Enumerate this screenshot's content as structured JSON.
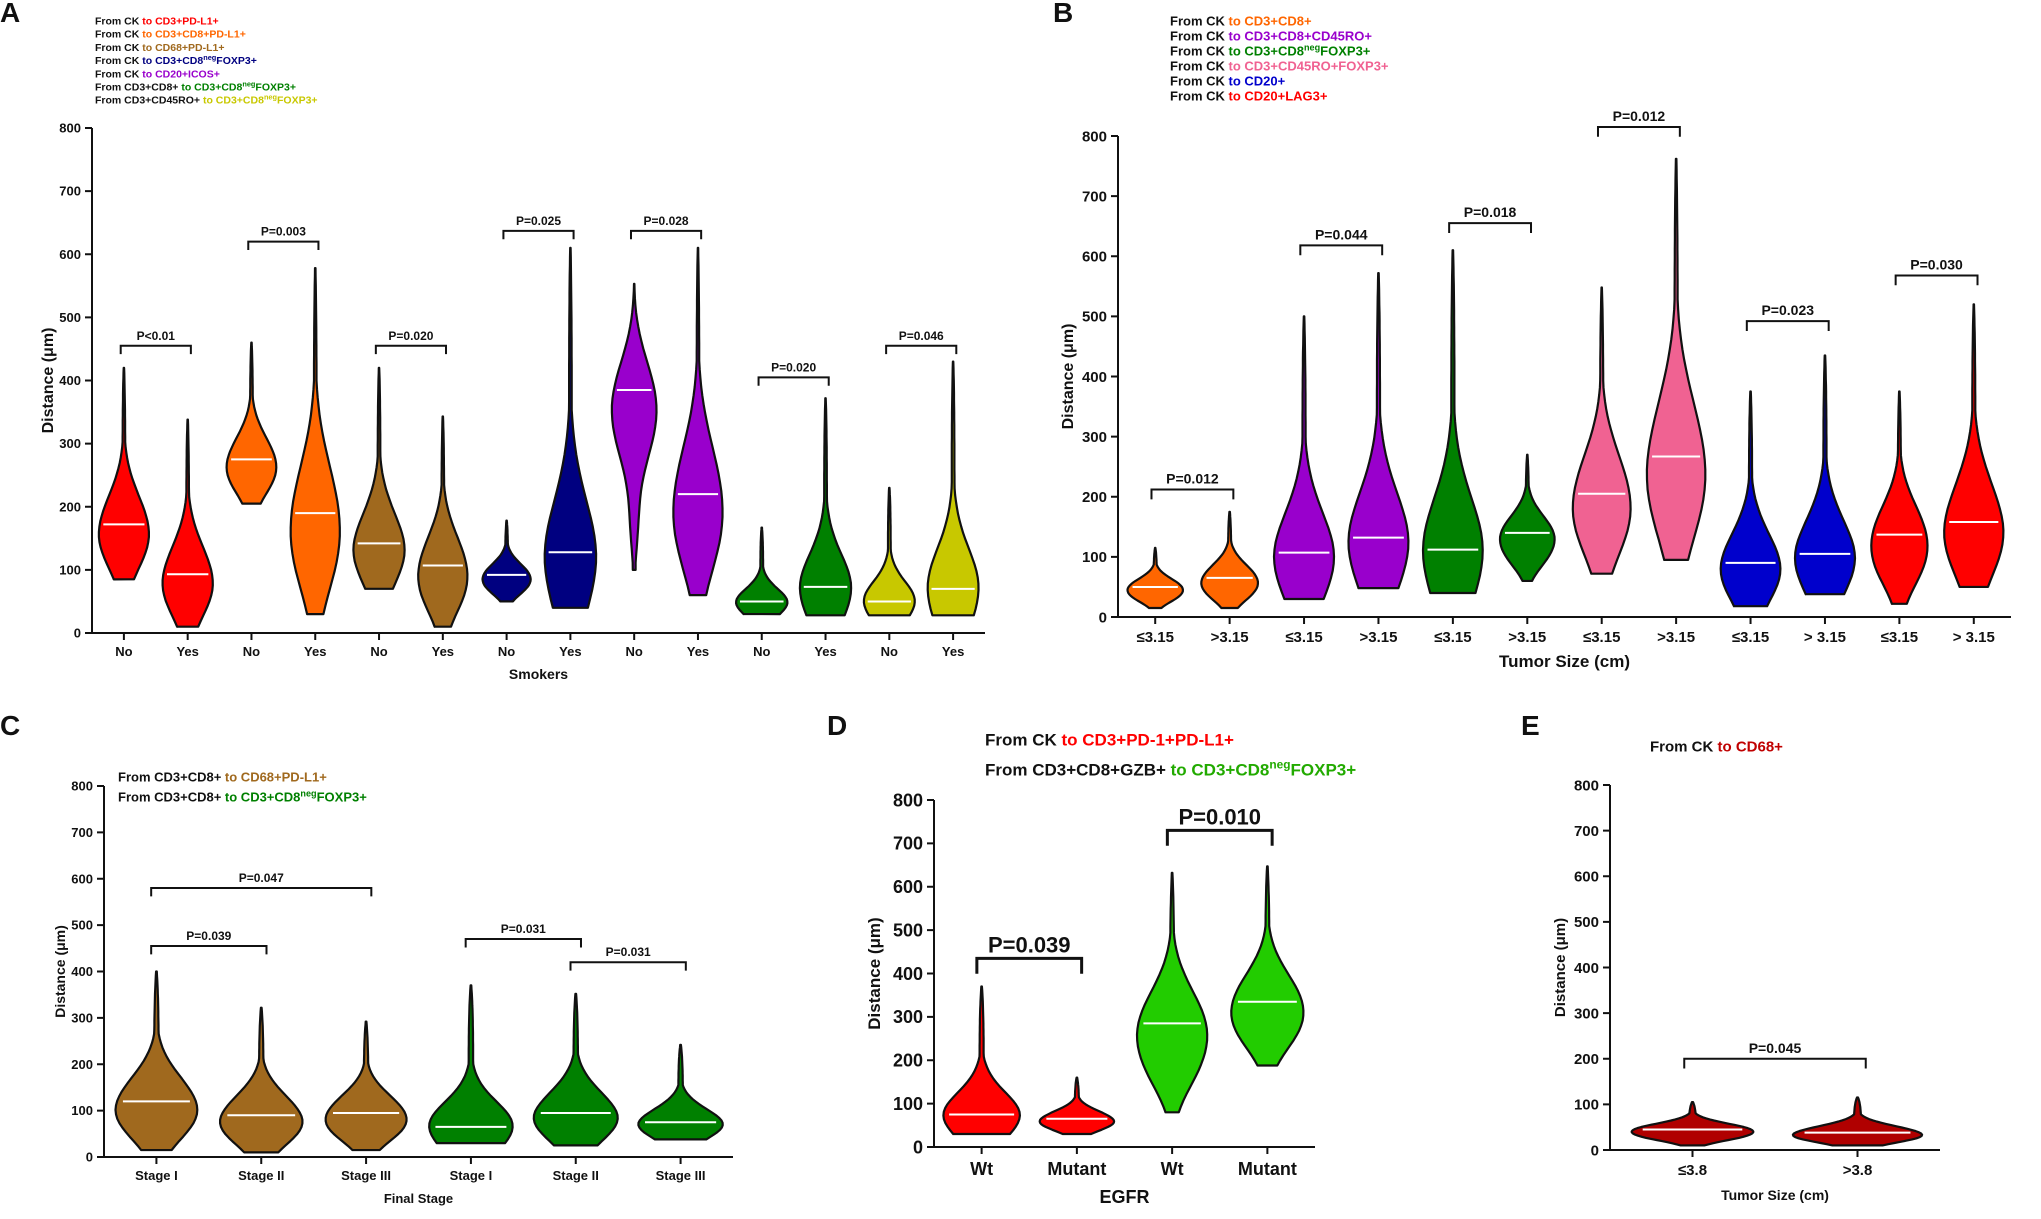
{
  "figure": {
    "median_line_color": "#ffffff",
    "outline_color": "#111111"
  },
  "chart_data": [
    {
      "panel_label": "A",
      "type": "violin",
      "title": "",
      "legend": [
        {
          "parts": [
            {
              "text": "From CK ",
              "color": "#111111"
            },
            {
              "text": "to CD3+PD-L1+",
              "color": "#ff0000"
            }
          ]
        },
        {
          "parts": [
            {
              "text": "From CK ",
              "color": "#111111"
            },
            {
              "text": "to CD3+CD8+PD-L1+",
              "color": "#ff6600"
            }
          ]
        },
        {
          "parts": [
            {
              "text": "From CK ",
              "color": "#111111"
            },
            {
              "text": "to CD68+PD-L1+",
              "color": "#a0691e"
            }
          ]
        },
        {
          "parts": [
            {
              "text": "From CK ",
              "color": "#111111"
            },
            {
              "text": "to CD3+CD8",
              "color": "#000080"
            },
            {
              "text": "neg",
              "color": "#000080",
              "sup": true
            },
            {
              "text": "FOXP3+",
              "color": "#000080"
            }
          ]
        },
        {
          "parts": [
            {
              "text": "From CK ",
              "color": "#111111"
            },
            {
              "text": "to CD20+ICOS+",
              "color": "#9900cc"
            }
          ]
        },
        {
          "parts": [
            {
              "text": "From CD3+CD8+ ",
              "color": "#111111"
            },
            {
              "text": "to CD3+CD8",
              "color": "#008000"
            },
            {
              "text": "neg",
              "color": "#008000",
              "sup": true
            },
            {
              "text": "FOXP3+",
              "color": "#008000"
            }
          ]
        },
        {
          "parts": [
            {
              "text": "From CD3+CD45RO+ ",
              "color": "#111111"
            },
            {
              "text": "to CD3+CD8",
              "color": "#c8c800"
            },
            {
              "text": "neg",
              "color": "#c8c800",
              "sup": true
            },
            {
              "text": "FOXP3+",
              "color": "#c8c800"
            }
          ]
        }
      ],
      "xlabel": "Smokers",
      "ylabel": "Distance (μm)",
      "ylim": [
        0,
        800
      ],
      "yticks": [
        0,
        100,
        200,
        300,
        400,
        500,
        600,
        700,
        800
      ],
      "categories": [
        "No",
        "Yes",
        "No",
        "Yes",
        "No",
        "Yes",
        "No",
        "Yes",
        "No",
        "Yes",
        "No",
        "Yes",
        "No",
        "Yes"
      ],
      "series": [
        {
          "name": "From CK to CD3+PD-L1+",
          "color": "#ff0000",
          "groups": [
            {
              "category": "No",
              "min": 85,
              "max": 420,
              "median": 172
            },
            {
              "category": "Yes",
              "min": 10,
              "max": 338,
              "median": 93
            }
          ]
        },
        {
          "name": "From CK to CD3+CD8+PD-L1+",
          "color": "#ff6600",
          "groups": [
            {
              "category": "No",
              "min": 205,
              "max": 460,
              "median": 275
            },
            {
              "category": "Yes",
              "min": 30,
              "max": 578,
              "median": 190
            }
          ]
        },
        {
          "name": "From CK to CD68+PD-L1+",
          "color": "#a0691e",
          "groups": [
            {
              "category": "No",
              "min": 70,
              "max": 420,
              "median": 142
            },
            {
              "category": "Yes",
              "min": 10,
              "max": 343,
              "median": 107
            }
          ]
        },
        {
          "name": "From CK to CD3+CD8negFOXP3+",
          "color": "#000080",
          "groups": [
            {
              "category": "No",
              "min": 50,
              "max": 178,
              "median": 92
            },
            {
              "category": "Yes",
              "min": 40,
              "max": 610,
              "median": 128
            }
          ]
        },
        {
          "name": "From CK to CD20+ICOS+",
          "color": "#9900cc",
          "groups": [
            {
              "category": "No",
              "min": 100,
              "max": 553,
              "median": 385
            },
            {
              "category": "Yes",
              "min": 60,
              "max": 610,
              "median": 220
            }
          ]
        },
        {
          "name": "From CD3+CD8+ to CD3+CD8negFOXP3+",
          "color": "#008000",
          "groups": [
            {
              "category": "No",
              "min": 30,
              "max": 167,
              "median": 50
            },
            {
              "category": "Yes",
              "min": 28,
              "max": 372,
              "median": 73
            }
          ]
        },
        {
          "name": "From CD3+CD45RO+ to CD3+CD8negFOXP3+",
          "color": "#c8c800",
          "groups": [
            {
              "category": "No",
              "min": 28,
              "max": 230,
              "median": 50
            },
            {
              "category": "Yes",
              "min": 28,
              "max": 430,
              "median": 70
            }
          ]
        }
      ],
      "annotations": [
        {
          "text": "P<0.01",
          "from": 0,
          "to": 1,
          "y": 455
        },
        {
          "text": "P=0.003",
          "from": 2,
          "to": 3,
          "y": 620
        },
        {
          "text": "P=0.020",
          "from": 4,
          "to": 5,
          "y": 455
        },
        {
          "text": "P=0.025",
          "from": 6,
          "to": 7,
          "y": 637
        },
        {
          "text": "P=0.028",
          "from": 8,
          "to": 9,
          "y": 637
        },
        {
          "text": "P=0.020",
          "from": 10,
          "to": 11,
          "y": 405
        },
        {
          "text": "P=0.046",
          "from": 12,
          "to": 13,
          "y": 455
        }
      ]
    },
    {
      "panel_label": "B",
      "type": "violin",
      "title": "",
      "legend": [
        {
          "parts": [
            {
              "text": "From CK ",
              "color": "#111111"
            },
            {
              "text": "to CD3+CD8+",
              "color": "#ff6600"
            }
          ]
        },
        {
          "parts": [
            {
              "text": "From CK ",
              "color": "#111111"
            },
            {
              "text": "to CD3+CD8+CD45RO+",
              "color": "#9900cc"
            }
          ]
        },
        {
          "parts": [
            {
              "text": "From CK ",
              "color": "#111111"
            },
            {
              "text": "to CD3+CD8",
              "color": "#008000"
            },
            {
              "text": "neg",
              "color": "#008000",
              "sup": true
            },
            {
              "text": "FOXP3+",
              "color": "#008000"
            }
          ]
        },
        {
          "parts": [
            {
              "text": "From CK ",
              "color": "#111111"
            },
            {
              "text": "to CD3+CD45RO+FOXP3+",
              "color": "#f06292"
            }
          ]
        },
        {
          "parts": [
            {
              "text": "From CK ",
              "color": "#111111"
            },
            {
              "text": "to CD20+",
              "color": "#0000cc"
            }
          ]
        },
        {
          "parts": [
            {
              "text": "From CK ",
              "color": "#111111"
            },
            {
              "text": "to CD20+LAG3+",
              "color": "#ff0000"
            }
          ]
        }
      ],
      "xlabel": "Tumor Size (cm)",
      "ylabel": "Distance (μm)",
      "ylim": [
        0,
        800
      ],
      "yticks": [
        0,
        100,
        200,
        300,
        400,
        500,
        600,
        700,
        800
      ],
      "categories": [
        "≤3.15",
        ">3.15",
        "≤3.15",
        ">3.15",
        "≤3.15",
        ">3.15",
        "≤3.15",
        ">3.15",
        "≤3.15",
        "> 3.15",
        "≤3.15",
        "> 3.15"
      ],
      "series": [
        {
          "name": "From CK to CD3+CD8+",
          "color": "#ff6600",
          "groups": [
            {
              "category": "≤3.15",
              "min": 15,
              "max": 115,
              "median": 50
            },
            {
              "category": ">3.15",
              "min": 15,
              "max": 175,
              "median": 65
            }
          ]
        },
        {
          "name": "From CK to CD3+CD8+CD45RO+",
          "color": "#9900cc",
          "groups": [
            {
              "category": "≤3.15",
              "min": 30,
              "max": 500,
              "median": 107
            },
            {
              "category": ">3.15",
              "min": 48,
              "max": 572,
              "median": 132
            }
          ]
        },
        {
          "name": "From CK to CD3+CD8negFOXP3+",
          "color": "#008000",
          "groups": [
            {
              "category": "≤3.15",
              "min": 40,
              "max": 610,
              "median": 112
            },
            {
              "category": ">3.15",
              "min": 60,
              "max": 270,
              "median": 140
            }
          ]
        },
        {
          "name": "From CK to CD3+CD45RO+FOXP3+",
          "color": "#f06292",
          "groups": [
            {
              "category": "≤3.15",
              "min": 72,
              "max": 548,
              "median": 205
            },
            {
              "category": ">3.15",
              "min": 95,
              "max": 762,
              "median": 267
            }
          ]
        },
        {
          "name": "From CK to CD20+",
          "color": "#0000cc",
          "groups": [
            {
              "category": "≤3.15",
              "min": 18,
              "max": 375,
              "median": 90
            },
            {
              "category": "> 3.15",
              "min": 38,
              "max": 435,
              "median": 105
            }
          ]
        },
        {
          "name": "From CK to CD20+LAG3+",
          "color": "#ff0000",
          "groups": [
            {
              "category": "≤3.15",
              "min": 22,
              "max": 375,
              "median": 137
            },
            {
              "category": "> 3.15",
              "min": 50,
              "max": 520,
              "median": 158
            }
          ]
        }
      ],
      "annotations": [
        {
          "text": "P=0.012",
          "from": 0,
          "to": 1,
          "y": 212
        },
        {
          "text": "P=0.044",
          "from": 2,
          "to": 3,
          "y": 618
        },
        {
          "text": "P=0.018",
          "from": 4,
          "to": 5,
          "y": 655
        },
        {
          "text": "P=0.012",
          "from": 6,
          "to": 7,
          "y": 815
        },
        {
          "text": "P=0.023",
          "from": 8,
          "to": 9,
          "y": 492
        },
        {
          "text": "P=0.030",
          "from": 10,
          "to": 11,
          "y": 568
        }
      ]
    },
    {
      "panel_label": "C",
      "type": "violin",
      "title": "",
      "legend": [
        {
          "parts": [
            {
              "text": "From CD3+CD8+ ",
              "color": "#111111"
            },
            {
              "text": "to CD68+PD-L1+",
              "color": "#a0691e"
            }
          ]
        },
        {
          "parts": [
            {
              "text": "From CD3+CD8+ ",
              "color": "#111111"
            },
            {
              "text": "to CD3+CD8",
              "color": "#008000"
            },
            {
              "text": "neg",
              "color": "#008000",
              "sup": true
            },
            {
              "text": "FOXP3+",
              "color": "#008000"
            }
          ]
        }
      ],
      "xlabel": "Final Stage",
      "ylabel": "Distance (μm)",
      "ylim": [
        0,
        800
      ],
      "yticks": [
        0,
        100,
        200,
        300,
        400,
        500,
        600,
        700,
        800
      ],
      "categories": [
        "Stage I",
        "Stage II",
        "Stage III",
        "Stage I",
        "Stage II",
        "Stage III"
      ],
      "series": [
        {
          "name": "From CD3+CD8+ to CD68+PD-L1+",
          "color": "#a0691e",
          "groups": [
            {
              "category": "Stage I",
              "min": 15,
              "max": 400,
              "median": 120
            },
            {
              "category": "Stage II",
              "min": 10,
              "max": 322,
              "median": 90
            },
            {
              "category": "Stage III",
              "min": 15,
              "max": 292,
              "median": 95
            }
          ]
        },
        {
          "name": "From CD3+CD8+ to CD3+CD8negFOXP3+",
          "color": "#008000",
          "groups": [
            {
              "category": "Stage I",
              "min": 30,
              "max": 370,
              "median": 65
            },
            {
              "category": "Stage II",
              "min": 25,
              "max": 352,
              "median": 95
            },
            {
              "category": "Stage III",
              "min": 38,
              "max": 242,
              "median": 75
            }
          ]
        }
      ],
      "annotations": [
        {
          "text": "P=0.047",
          "from": 0,
          "to": 2,
          "y": 580
        },
        {
          "text": "P=0.039",
          "from": 0,
          "to": 1,
          "y": 455
        },
        {
          "text": "P=0.031",
          "from": 3,
          "to": 4,
          "y": 470
        },
        {
          "text": "P=0.031",
          "from": 4,
          "to": 5,
          "y": 420
        }
      ]
    },
    {
      "panel_label": "D",
      "type": "violin",
      "title": "",
      "legend": [
        {
          "parts": [
            {
              "text": "From CK ",
              "color": "#111111"
            },
            {
              "text": " to CD3+PD-1+PD-L1+",
              "color": "#ff0000"
            }
          ]
        },
        {
          "parts": [
            {
              "text": "From CD3+CD8+GZB+ ",
              "color": "#111111"
            },
            {
              "text": "to CD3+CD8",
              "color": "#22aa00"
            },
            {
              "text": "neg",
              "color": "#22aa00",
              "sup": true
            },
            {
              "text": "FOXP3+",
              "color": "#22aa00"
            }
          ]
        }
      ],
      "xlabel": "EGFR",
      "ylabel": "Distance (μm)",
      "ylim": [
        0,
        800
      ],
      "yticks": [
        0,
        100,
        200,
        300,
        400,
        500,
        600,
        700,
        800
      ],
      "categories": [
        "Wt",
        "Mutant",
        "Wt",
        "Mutant"
      ],
      "series": [
        {
          "name": "From CK to CD3+PD-1+PD-L1+",
          "color": "#ff0000",
          "groups": [
            {
              "category": "Wt",
              "min": 30,
              "max": 370,
              "median": 75
            },
            {
              "category": "Mutant",
              "min": 30,
              "max": 160,
              "median": 65
            }
          ]
        },
        {
          "name": "From CD3+CD8+GZB+ to CD3+CD8negFOXP3+",
          "color": "#22cc00",
          "groups": [
            {
              "category": "Wt",
              "min": 80,
              "max": 632,
              "median": 285
            },
            {
              "category": "Mutant",
              "min": 188,
              "max": 647,
              "median": 335
            }
          ]
        }
      ],
      "annotations": [
        {
          "text": "P=0.039",
          "from": 0,
          "to": 1,
          "y": 435
        },
        {
          "text": "P=0.010",
          "from": 2,
          "to": 3,
          "y": 730
        }
      ]
    },
    {
      "panel_label": "E",
      "type": "violin",
      "title": "",
      "legend": [
        {
          "parts": [
            {
              "text": "From CK ",
              "color": "#111111"
            },
            {
              "text": "to CD68+",
              "color": "#c00000"
            }
          ]
        }
      ],
      "xlabel": "Tumor Size (cm)",
      "ylabel": "Distance (μm)",
      "ylim": [
        0,
        800
      ],
      "yticks": [
        0,
        100,
        200,
        300,
        400,
        500,
        600,
        700,
        800
      ],
      "categories": [
        "≤3.8",
        ">3.8"
      ],
      "series": [
        {
          "name": "From CK to CD68+",
          "color": "#b00000",
          "groups": [
            {
              "category": "≤3.8",
              "min": 10,
              "max": 105,
              "median": 45
            },
            {
              "category": ">3.8",
              "min": 10,
              "max": 115,
              "median": 38
            }
          ]
        }
      ],
      "annotations": [
        {
          "text": "P=0.045",
          "from": 0,
          "to": 1,
          "y": 200
        }
      ]
    }
  ]
}
